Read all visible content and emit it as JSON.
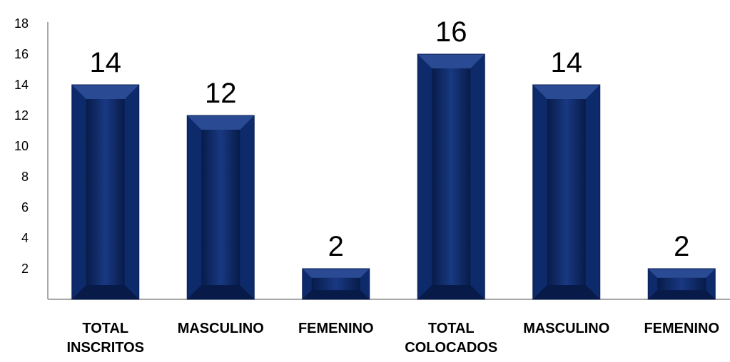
{
  "chart_data": {
    "type": "bar",
    "title": "",
    "xlabel": "",
    "ylabel": "",
    "categories": [
      [
        "TOTAL",
        "INSCRITOS"
      ],
      [
        "MASCULINO"
      ],
      [
        "FEMENINO"
      ],
      [
        "TOTAL",
        "COLOCADOS"
      ],
      [
        "MASCULINO"
      ],
      [
        "FEMENINO"
      ]
    ],
    "values": [
      14,
      12,
      2,
      16,
      14,
      2
    ],
    "data_labels": [
      "14",
      "12",
      "2",
      "16",
      "14",
      "2"
    ],
    "y_ticks": [
      "2",
      "4",
      "6",
      "8",
      "10",
      "12",
      "14",
      "16",
      "18"
    ],
    "ylim": [
      0,
      18
    ],
    "grid": false,
    "legend": "none",
    "bar_color": "#0d2a6b",
    "bar_highlight_color": "#2a4a94",
    "bar_shadow_color": "#081a47"
  }
}
